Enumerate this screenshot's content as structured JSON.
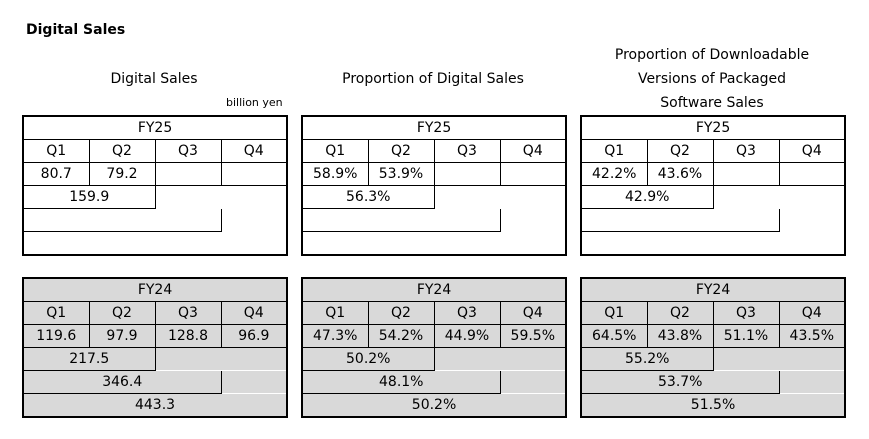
{
  "page_title": "Digital Sales",
  "unit": "billion yen",
  "blocks": [
    {
      "header": "Digital Sales",
      "fy25": {
        "label": "FY25",
        "quarters": [
          "Q1",
          "Q2",
          "Q3",
          "Q4"
        ],
        "values": [
          "80.7",
          "79.2",
          "",
          ""
        ],
        "cum_h1": "159.9",
        "cum_q3": "",
        "full": ""
      },
      "fy24": {
        "label": "FY24",
        "quarters": [
          "Q1",
          "Q2",
          "Q3",
          "Q4"
        ],
        "values": [
          "119.6",
          "97.9",
          "128.8",
          "96.9"
        ],
        "cum_h1": "217.5",
        "cum_q3": "346.4",
        "full": "443.3"
      }
    },
    {
      "header": "Proportion of Digital Sales",
      "fy25": {
        "label": "FY25",
        "quarters": [
          "Q1",
          "Q2",
          "Q3",
          "Q4"
        ],
        "values": [
          "58.9%",
          "53.9%",
          "",
          ""
        ],
        "cum_h1": "56.3%",
        "cum_q3": "",
        "full": ""
      },
      "fy24": {
        "label": "FY24",
        "quarters": [
          "Q1",
          "Q2",
          "Q3",
          "Q4"
        ],
        "values": [
          "47.3%",
          "54.2%",
          "44.9%",
          "59.5%"
        ],
        "cum_h1": "50.2%",
        "cum_q3": "48.1%",
        "full": "50.2%"
      }
    },
    {
      "header_lines": [
        "Proportion of Downloadable",
        "Versions of Packaged",
        "Software Sales"
      ],
      "fy25": {
        "label": "FY25",
        "quarters": [
          "Q1",
          "Q2",
          "Q3",
          "Q4"
        ],
        "values": [
          "42.2%",
          "43.6%",
          "",
          ""
        ],
        "cum_h1": "42.9%",
        "cum_q3": "",
        "full": ""
      },
      "fy24": {
        "label": "FY24",
        "quarters": [
          "Q1",
          "Q2",
          "Q3",
          "Q4"
        ],
        "values": [
          "64.5%",
          "43.8%",
          "51.1%",
          "43.5%"
        ],
        "cum_h1": "55.2%",
        "cum_q3": "53.7%",
        "full": "51.5%"
      }
    }
  ]
}
